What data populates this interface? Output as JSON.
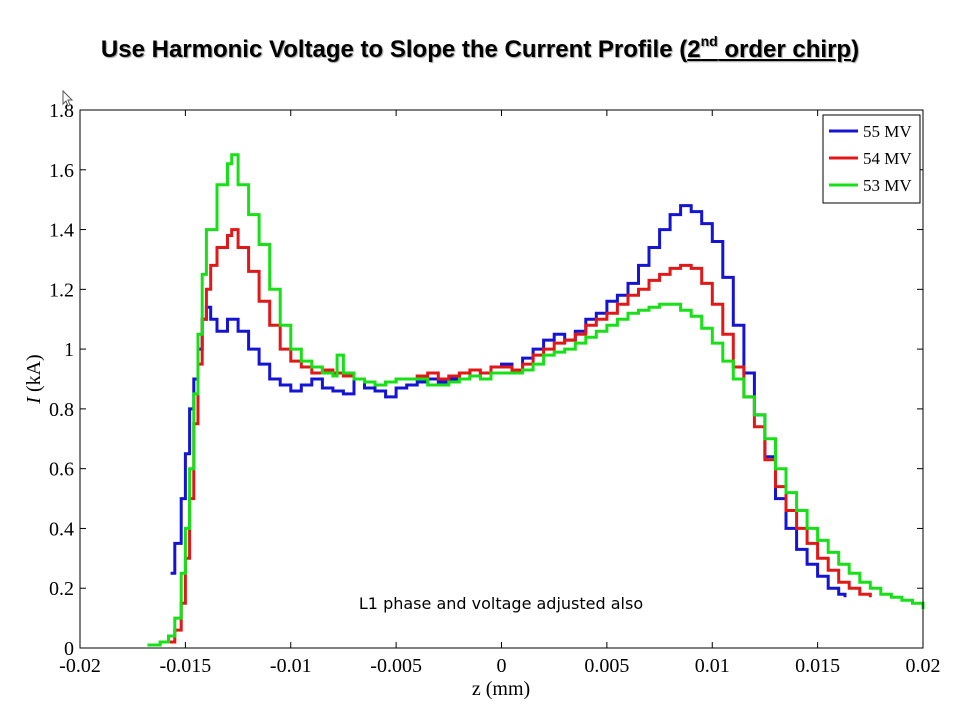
{
  "title": {
    "main": "Use Harmonic Voltage to Slope the Current Profile (",
    "ul_part": "2",
    "sup": "nd",
    "ul_rest": " order chirp",
    "close": ")"
  },
  "chart_data": {
    "type": "line",
    "xlabel": "z (mm)",
    "ylabel_italic": "I",
    "ylabel_unit": " (kA)",
    "xlim": [
      -0.02,
      0.02
    ],
    "ylim": [
      0,
      1.8
    ],
    "xticks": [
      "-0.02",
      "-0.015",
      "-0.01",
      "-0.005",
      "0",
      "0.005",
      "0.01",
      "0.015",
      "0.02"
    ],
    "xtick_values": [
      -0.02,
      -0.015,
      -0.01,
      -0.005,
      0,
      0.005,
      0.01,
      0.015,
      0.02
    ],
    "yticks": [
      "0",
      "0.2",
      "0.4",
      "0.6",
      "0.8",
      "1",
      "1.2",
      "1.4",
      "1.6",
      "1.8"
    ],
    "ytick_values": [
      0,
      0.2,
      0.4,
      0.6,
      0.8,
      1.0,
      1.2,
      1.4,
      1.6,
      1.8
    ],
    "grid": false,
    "legend_position": "top-right",
    "annotation": "L1 phase and voltage adjusted also",
    "series": [
      {
        "name": "55 MV",
        "color": "#1414d2",
        "points": [
          [
            -0.0157,
            0.25
          ],
          [
            -0.0155,
            0.35
          ],
          [
            -0.0152,
            0.5
          ],
          [
            -0.015,
            0.65
          ],
          [
            -0.0148,
            0.8
          ],
          [
            -0.0146,
            0.9
          ],
          [
            -0.0144,
            1.0
          ],
          [
            -0.0142,
            1.1
          ],
          [
            -0.014,
            1.14
          ],
          [
            -0.0138,
            1.1
          ],
          [
            -0.0135,
            1.06
          ],
          [
            -0.013,
            1.1
          ],
          [
            -0.0125,
            1.06
          ],
          [
            -0.012,
            1.0
          ],
          [
            -0.0115,
            0.95
          ],
          [
            -0.011,
            0.9
          ],
          [
            -0.0105,
            0.88
          ],
          [
            -0.01,
            0.86
          ],
          [
            -0.0095,
            0.88
          ],
          [
            -0.009,
            0.9
          ],
          [
            -0.0085,
            0.87
          ],
          [
            -0.008,
            0.86
          ],
          [
            -0.0075,
            0.85
          ],
          [
            -0.007,
            0.9
          ],
          [
            -0.0065,
            0.87
          ],
          [
            -0.006,
            0.86
          ],
          [
            -0.0055,
            0.84
          ],
          [
            -0.005,
            0.87
          ],
          [
            -0.0045,
            0.88
          ],
          [
            -0.004,
            0.89
          ],
          [
            -0.0035,
            0.9
          ],
          [
            -0.003,
            0.89
          ],
          [
            -0.0025,
            0.9
          ],
          [
            -0.002,
            0.92
          ],
          [
            -0.0015,
            0.91
          ],
          [
            -0.001,
            0.92
          ],
          [
            -0.0005,
            0.94
          ],
          [
            0.0,
            0.95
          ],
          [
            0.0005,
            0.93
          ],
          [
            0.001,
            0.97
          ],
          [
            0.0015,
            1.0
          ],
          [
            0.002,
            1.03
          ],
          [
            0.0025,
            1.05
          ],
          [
            0.003,
            1.03
          ],
          [
            0.0035,
            1.06
          ],
          [
            0.004,
            1.1
          ],
          [
            0.0045,
            1.12
          ],
          [
            0.005,
            1.16
          ],
          [
            0.0055,
            1.18
          ],
          [
            0.006,
            1.22
          ],
          [
            0.0065,
            1.28
          ],
          [
            0.007,
            1.34
          ],
          [
            0.0075,
            1.4
          ],
          [
            0.008,
            1.45
          ],
          [
            0.0085,
            1.48
          ],
          [
            0.009,
            1.46
          ],
          [
            0.0095,
            1.42
          ],
          [
            0.01,
            1.36
          ],
          [
            0.0105,
            1.24
          ],
          [
            0.011,
            1.08
          ],
          [
            0.0115,
            0.92
          ],
          [
            0.012,
            0.78
          ],
          [
            0.0125,
            0.64
          ],
          [
            0.013,
            0.5
          ],
          [
            0.0135,
            0.4
          ],
          [
            0.014,
            0.33
          ],
          [
            0.0145,
            0.28
          ],
          [
            0.015,
            0.24
          ],
          [
            0.0155,
            0.2
          ],
          [
            0.016,
            0.18
          ],
          [
            0.0163,
            0.17
          ]
        ]
      },
      {
        "name": "54 MV",
        "color": "#e01818",
        "points": [
          [
            -0.0158,
            0.02
          ],
          [
            -0.0155,
            0.06
          ],
          [
            -0.0152,
            0.15
          ],
          [
            -0.015,
            0.3
          ],
          [
            -0.0148,
            0.5
          ],
          [
            -0.0146,
            0.75
          ],
          [
            -0.0144,
            0.95
          ],
          [
            -0.0142,
            1.1
          ],
          [
            -0.014,
            1.2
          ],
          [
            -0.0138,
            1.28
          ],
          [
            -0.0135,
            1.34
          ],
          [
            -0.013,
            1.38
          ],
          [
            -0.0128,
            1.4
          ],
          [
            -0.0125,
            1.34
          ],
          [
            -0.012,
            1.26
          ],
          [
            -0.0115,
            1.16
          ],
          [
            -0.011,
            1.08
          ],
          [
            -0.0105,
            1.0
          ],
          [
            -0.01,
            0.96
          ],
          [
            -0.0095,
            0.94
          ],
          [
            -0.009,
            0.92
          ],
          [
            -0.0085,
            0.93
          ],
          [
            -0.008,
            0.92
          ],
          [
            -0.0075,
            0.91
          ],
          [
            -0.007,
            0.9
          ],
          [
            -0.0065,
            0.89
          ],
          [
            -0.006,
            0.88
          ],
          [
            -0.0055,
            0.89
          ],
          [
            -0.005,
            0.9
          ],
          [
            -0.0045,
            0.9
          ],
          [
            -0.004,
            0.91
          ],
          [
            -0.0035,
            0.92
          ],
          [
            -0.003,
            0.9
          ],
          [
            -0.0025,
            0.91
          ],
          [
            -0.002,
            0.92
          ],
          [
            -0.0015,
            0.93
          ],
          [
            -0.001,
            0.92
          ],
          [
            -0.0005,
            0.94
          ],
          [
            0.0,
            0.94
          ],
          [
            0.0005,
            0.93
          ],
          [
            0.001,
            0.95
          ],
          [
            0.0015,
            0.98
          ],
          [
            0.002,
            1.0
          ],
          [
            0.0025,
            1.02
          ],
          [
            0.003,
            1.03
          ],
          [
            0.0035,
            1.05
          ],
          [
            0.004,
            1.08
          ],
          [
            0.0045,
            1.1
          ],
          [
            0.005,
            1.12
          ],
          [
            0.0055,
            1.15
          ],
          [
            0.006,
            1.18
          ],
          [
            0.0065,
            1.2
          ],
          [
            0.007,
            1.23
          ],
          [
            0.0075,
            1.25
          ],
          [
            0.008,
            1.27
          ],
          [
            0.0085,
            1.28
          ],
          [
            0.009,
            1.27
          ],
          [
            0.0095,
            1.22
          ],
          [
            0.01,
            1.15
          ],
          [
            0.0105,
            1.05
          ],
          [
            0.011,
            0.94
          ],
          [
            0.0115,
            0.84
          ],
          [
            0.012,
            0.74
          ],
          [
            0.0125,
            0.63
          ],
          [
            0.013,
            0.54
          ],
          [
            0.0135,
            0.46
          ],
          [
            0.014,
            0.4
          ],
          [
            0.0145,
            0.35
          ],
          [
            0.015,
            0.3
          ],
          [
            0.0155,
            0.26
          ],
          [
            0.016,
            0.22
          ],
          [
            0.0165,
            0.2
          ],
          [
            0.017,
            0.18
          ],
          [
            0.0175,
            0.17
          ]
        ]
      },
      {
        "name": "53 MV",
        "color": "#18e018",
        "points": [
          [
            -0.0168,
            0.01
          ],
          [
            -0.0162,
            0.02
          ],
          [
            -0.0158,
            0.04
          ],
          [
            -0.0155,
            0.1
          ],
          [
            -0.0152,
            0.25
          ],
          [
            -0.015,
            0.4
          ],
          [
            -0.0148,
            0.6
          ],
          [
            -0.0146,
            0.85
          ],
          [
            -0.0144,
            1.05
          ],
          [
            -0.0142,
            1.25
          ],
          [
            -0.014,
            1.4
          ],
          [
            -0.0135,
            1.55
          ],
          [
            -0.013,
            1.62
          ],
          [
            -0.0128,
            1.65
          ],
          [
            -0.0125,
            1.55
          ],
          [
            -0.012,
            1.45
          ],
          [
            -0.0115,
            1.35
          ],
          [
            -0.011,
            1.2
          ],
          [
            -0.0105,
            1.08
          ],
          [
            -0.01,
            1.0
          ],
          [
            -0.0095,
            0.96
          ],
          [
            -0.009,
            0.94
          ],
          [
            -0.0085,
            0.92
          ],
          [
            -0.008,
            0.91
          ],
          [
            -0.0078,
            0.98
          ],
          [
            -0.0075,
            0.92
          ],
          [
            -0.007,
            0.9
          ],
          [
            -0.0065,
            0.89
          ],
          [
            -0.006,
            0.88
          ],
          [
            -0.0055,
            0.89
          ],
          [
            -0.005,
            0.9
          ],
          [
            -0.0045,
            0.9
          ],
          [
            -0.004,
            0.9
          ],
          [
            -0.0035,
            0.88
          ],
          [
            -0.003,
            0.88
          ],
          [
            -0.0025,
            0.89
          ],
          [
            -0.002,
            0.9
          ],
          [
            -0.0015,
            0.91
          ],
          [
            -0.001,
            0.9
          ],
          [
            -0.0005,
            0.92
          ],
          [
            0.0,
            0.92
          ],
          [
            0.0005,
            0.92
          ],
          [
            0.001,
            0.93
          ],
          [
            0.0015,
            0.95
          ],
          [
            0.002,
            0.98
          ],
          [
            0.0025,
            0.99
          ],
          [
            0.003,
            1.0
          ],
          [
            0.0035,
            1.02
          ],
          [
            0.004,
            1.04
          ],
          [
            0.0045,
            1.06
          ],
          [
            0.005,
            1.08
          ],
          [
            0.0055,
            1.1
          ],
          [
            0.006,
            1.12
          ],
          [
            0.0065,
            1.13
          ],
          [
            0.007,
            1.14
          ],
          [
            0.0075,
            1.15
          ],
          [
            0.008,
            1.15
          ],
          [
            0.0085,
            1.13
          ],
          [
            0.009,
            1.11
          ],
          [
            0.0095,
            1.07
          ],
          [
            0.01,
            1.02
          ],
          [
            0.0105,
            0.96
          ],
          [
            0.011,
            0.9
          ],
          [
            0.0115,
            0.84
          ],
          [
            0.012,
            0.78
          ],
          [
            0.0125,
            0.7
          ],
          [
            0.013,
            0.6
          ],
          [
            0.0135,
            0.52
          ],
          [
            0.014,
            0.46
          ],
          [
            0.0145,
            0.4
          ],
          [
            0.015,
            0.36
          ],
          [
            0.0155,
            0.32
          ],
          [
            0.016,
            0.28
          ],
          [
            0.0165,
            0.25
          ],
          [
            0.017,
            0.22
          ],
          [
            0.0175,
            0.2
          ],
          [
            0.018,
            0.18
          ],
          [
            0.0185,
            0.17
          ],
          [
            0.019,
            0.16
          ],
          [
            0.0195,
            0.15
          ],
          [
            0.02,
            0.13
          ]
        ]
      }
    ]
  }
}
